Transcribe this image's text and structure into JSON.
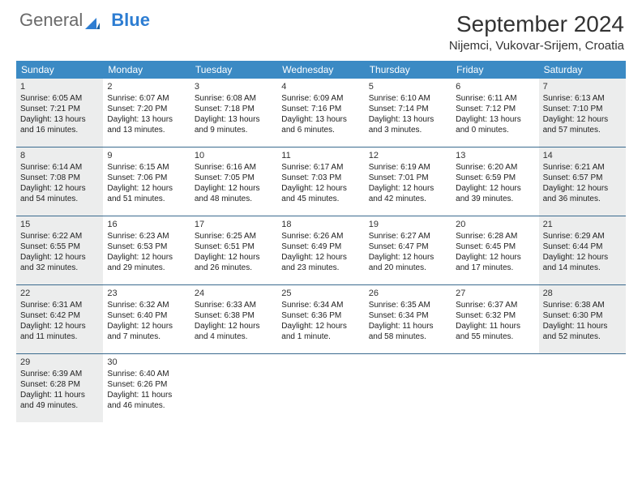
{
  "logo": {
    "word1": "General",
    "word2": "Blue"
  },
  "title": "September 2024",
  "location": "Nijemci, Vukovar-Srijem, Croatia",
  "colors": {
    "header_bg": "#3b8ac4",
    "header_text": "#ffffff",
    "shaded_cell": "#eceded",
    "border": "#3b6b8f",
    "logo_gray": "#6a6a6a",
    "logo_blue": "#2d7dd2",
    "text": "#222222"
  },
  "day_names": [
    "Sunday",
    "Monday",
    "Tuesday",
    "Wednesday",
    "Thursday",
    "Friday",
    "Saturday"
  ],
  "weeks": [
    [
      {
        "n": "1",
        "shaded": true,
        "sunrise": "Sunrise: 6:05 AM",
        "sunset": "Sunset: 7:21 PM",
        "dl1": "Daylight: 13 hours",
        "dl2": "and 16 minutes."
      },
      {
        "n": "2",
        "shaded": false,
        "sunrise": "Sunrise: 6:07 AM",
        "sunset": "Sunset: 7:20 PM",
        "dl1": "Daylight: 13 hours",
        "dl2": "and 13 minutes."
      },
      {
        "n": "3",
        "shaded": false,
        "sunrise": "Sunrise: 6:08 AM",
        "sunset": "Sunset: 7:18 PM",
        "dl1": "Daylight: 13 hours",
        "dl2": "and 9 minutes."
      },
      {
        "n": "4",
        "shaded": false,
        "sunrise": "Sunrise: 6:09 AM",
        "sunset": "Sunset: 7:16 PM",
        "dl1": "Daylight: 13 hours",
        "dl2": "and 6 minutes."
      },
      {
        "n": "5",
        "shaded": false,
        "sunrise": "Sunrise: 6:10 AM",
        "sunset": "Sunset: 7:14 PM",
        "dl1": "Daylight: 13 hours",
        "dl2": "and 3 minutes."
      },
      {
        "n": "6",
        "shaded": false,
        "sunrise": "Sunrise: 6:11 AM",
        "sunset": "Sunset: 7:12 PM",
        "dl1": "Daylight: 13 hours",
        "dl2": "and 0 minutes."
      },
      {
        "n": "7",
        "shaded": true,
        "sunrise": "Sunrise: 6:13 AM",
        "sunset": "Sunset: 7:10 PM",
        "dl1": "Daylight: 12 hours",
        "dl2": "and 57 minutes."
      }
    ],
    [
      {
        "n": "8",
        "shaded": true,
        "sunrise": "Sunrise: 6:14 AM",
        "sunset": "Sunset: 7:08 PM",
        "dl1": "Daylight: 12 hours",
        "dl2": "and 54 minutes."
      },
      {
        "n": "9",
        "shaded": false,
        "sunrise": "Sunrise: 6:15 AM",
        "sunset": "Sunset: 7:06 PM",
        "dl1": "Daylight: 12 hours",
        "dl2": "and 51 minutes."
      },
      {
        "n": "10",
        "shaded": false,
        "sunrise": "Sunrise: 6:16 AM",
        "sunset": "Sunset: 7:05 PM",
        "dl1": "Daylight: 12 hours",
        "dl2": "and 48 minutes."
      },
      {
        "n": "11",
        "shaded": false,
        "sunrise": "Sunrise: 6:17 AM",
        "sunset": "Sunset: 7:03 PM",
        "dl1": "Daylight: 12 hours",
        "dl2": "and 45 minutes."
      },
      {
        "n": "12",
        "shaded": false,
        "sunrise": "Sunrise: 6:19 AM",
        "sunset": "Sunset: 7:01 PM",
        "dl1": "Daylight: 12 hours",
        "dl2": "and 42 minutes."
      },
      {
        "n": "13",
        "shaded": false,
        "sunrise": "Sunrise: 6:20 AM",
        "sunset": "Sunset: 6:59 PM",
        "dl1": "Daylight: 12 hours",
        "dl2": "and 39 minutes."
      },
      {
        "n": "14",
        "shaded": true,
        "sunrise": "Sunrise: 6:21 AM",
        "sunset": "Sunset: 6:57 PM",
        "dl1": "Daylight: 12 hours",
        "dl2": "and 36 minutes."
      }
    ],
    [
      {
        "n": "15",
        "shaded": true,
        "sunrise": "Sunrise: 6:22 AM",
        "sunset": "Sunset: 6:55 PM",
        "dl1": "Daylight: 12 hours",
        "dl2": "and 32 minutes."
      },
      {
        "n": "16",
        "shaded": false,
        "sunrise": "Sunrise: 6:23 AM",
        "sunset": "Sunset: 6:53 PM",
        "dl1": "Daylight: 12 hours",
        "dl2": "and 29 minutes."
      },
      {
        "n": "17",
        "shaded": false,
        "sunrise": "Sunrise: 6:25 AM",
        "sunset": "Sunset: 6:51 PM",
        "dl1": "Daylight: 12 hours",
        "dl2": "and 26 minutes."
      },
      {
        "n": "18",
        "shaded": false,
        "sunrise": "Sunrise: 6:26 AM",
        "sunset": "Sunset: 6:49 PM",
        "dl1": "Daylight: 12 hours",
        "dl2": "and 23 minutes."
      },
      {
        "n": "19",
        "shaded": false,
        "sunrise": "Sunrise: 6:27 AM",
        "sunset": "Sunset: 6:47 PM",
        "dl1": "Daylight: 12 hours",
        "dl2": "and 20 minutes."
      },
      {
        "n": "20",
        "shaded": false,
        "sunrise": "Sunrise: 6:28 AM",
        "sunset": "Sunset: 6:45 PM",
        "dl1": "Daylight: 12 hours",
        "dl2": "and 17 minutes."
      },
      {
        "n": "21",
        "shaded": true,
        "sunrise": "Sunrise: 6:29 AM",
        "sunset": "Sunset: 6:44 PM",
        "dl1": "Daylight: 12 hours",
        "dl2": "and 14 minutes."
      }
    ],
    [
      {
        "n": "22",
        "shaded": true,
        "sunrise": "Sunrise: 6:31 AM",
        "sunset": "Sunset: 6:42 PM",
        "dl1": "Daylight: 12 hours",
        "dl2": "and 11 minutes."
      },
      {
        "n": "23",
        "shaded": false,
        "sunrise": "Sunrise: 6:32 AM",
        "sunset": "Sunset: 6:40 PM",
        "dl1": "Daylight: 12 hours",
        "dl2": "and 7 minutes."
      },
      {
        "n": "24",
        "shaded": false,
        "sunrise": "Sunrise: 6:33 AM",
        "sunset": "Sunset: 6:38 PM",
        "dl1": "Daylight: 12 hours",
        "dl2": "and 4 minutes."
      },
      {
        "n": "25",
        "shaded": false,
        "sunrise": "Sunrise: 6:34 AM",
        "sunset": "Sunset: 6:36 PM",
        "dl1": "Daylight: 12 hours",
        "dl2": "and 1 minute."
      },
      {
        "n": "26",
        "shaded": false,
        "sunrise": "Sunrise: 6:35 AM",
        "sunset": "Sunset: 6:34 PM",
        "dl1": "Daylight: 11 hours",
        "dl2": "and 58 minutes."
      },
      {
        "n": "27",
        "shaded": false,
        "sunrise": "Sunrise: 6:37 AM",
        "sunset": "Sunset: 6:32 PM",
        "dl1": "Daylight: 11 hours",
        "dl2": "and 55 minutes."
      },
      {
        "n": "28",
        "shaded": true,
        "sunrise": "Sunrise: 6:38 AM",
        "sunset": "Sunset: 6:30 PM",
        "dl1": "Daylight: 11 hours",
        "dl2": "and 52 minutes."
      }
    ],
    [
      {
        "n": "29",
        "shaded": true,
        "sunrise": "Sunrise: 6:39 AM",
        "sunset": "Sunset: 6:28 PM",
        "dl1": "Daylight: 11 hours",
        "dl2": "and 49 minutes."
      },
      {
        "n": "30",
        "shaded": false,
        "sunrise": "Sunrise: 6:40 AM",
        "sunset": "Sunset: 6:26 PM",
        "dl1": "Daylight: 11 hours",
        "dl2": "and 46 minutes."
      },
      {
        "blank": true
      },
      {
        "blank": true
      },
      {
        "blank": true
      },
      {
        "blank": true
      },
      {
        "blank": true
      }
    ]
  ]
}
